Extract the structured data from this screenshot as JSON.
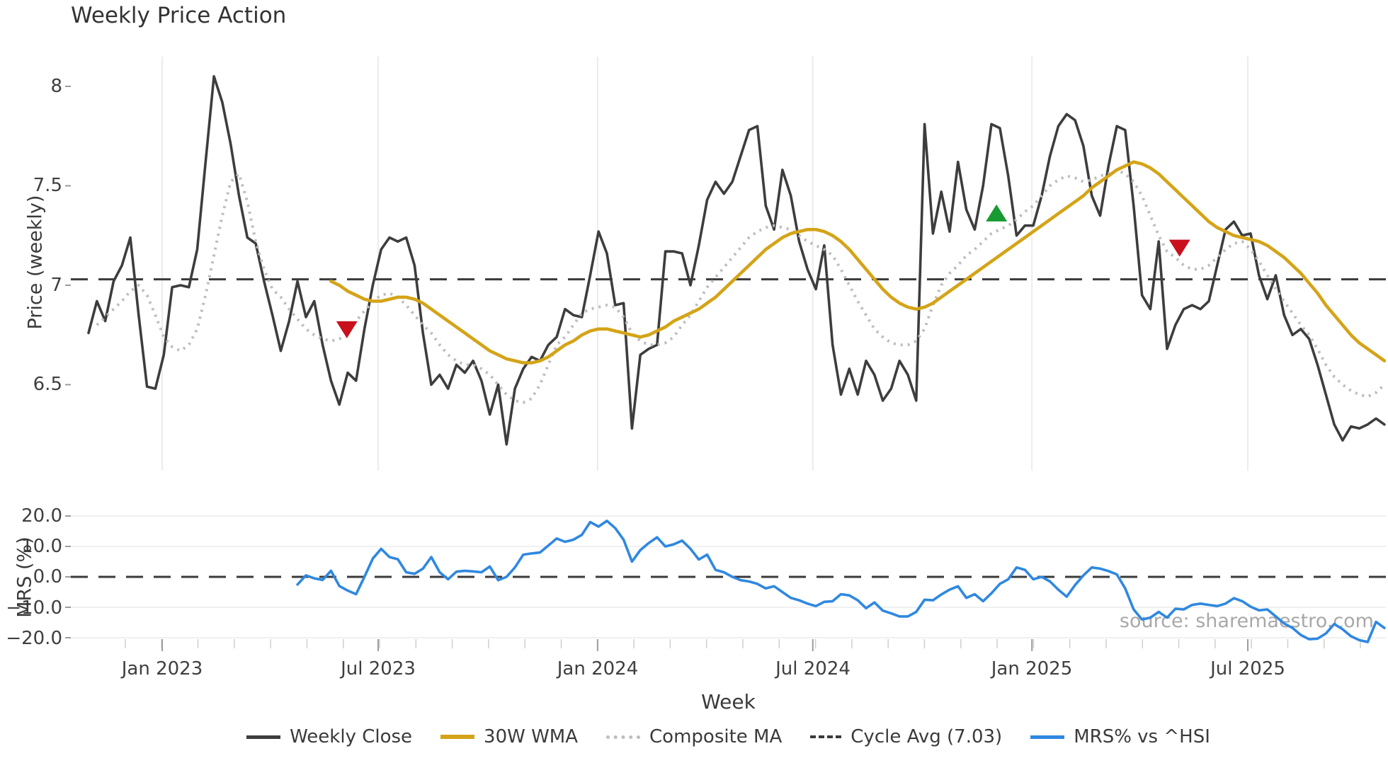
{
  "title": "Weekly Price Action",
  "source_note": "source: sharemaestro.com",
  "chart_data": {
    "type": "line",
    "title": "Weekly Price Action",
    "xlabel": "Week",
    "x_unit": "week_index_from_Nov_2022",
    "x_ticks": [
      {
        "week": 8.81,
        "label": "Jan 2023"
      },
      {
        "week": 34.64,
        "label": "Jul 2023"
      },
      {
        "week": 60.89,
        "label": "Jan 2024"
      },
      {
        "week": 86.63,
        "label": "Jul 2024"
      },
      {
        "week": 112.84,
        "label": "Jan 2025"
      },
      {
        "week": 138.66,
        "label": "Jul 2025"
      }
    ],
    "panels": [
      {
        "name": "price",
        "ylabel": "Price (weekly)",
        "ylim": [
          6.05,
          8.15
        ],
        "grid": "vertical",
        "yticks": [
          {
            "value": 8,
            "label": "8"
          },
          {
            "value": 7.5,
            "label": "7.5"
          },
          {
            "value": 7,
            "label": "7"
          },
          {
            "value": 6.5,
            "label": "6.5"
          }
        ]
      },
      {
        "name": "mrs",
        "ylabel": "MRS (%)",
        "ylim": [
          -23,
          23
        ],
        "grid": "horizontal",
        "grid_values": [
          20,
          10,
          -10,
          -20
        ],
        "yticks": [
          {
            "value": 20,
            "label": "20.0"
          },
          {
            "value": 10,
            "label": "10.0"
          },
          {
            "value": 0,
            "label": "0.0"
          },
          {
            "value": -10,
            "label": "−10.0"
          },
          {
            "value": -20,
            "label": "−20.0"
          }
        ]
      }
    ],
    "cycle_avg": 7.03,
    "series": [
      {
        "name": "Weekly Close",
        "panel": "price",
        "color": "#3d3d3d",
        "style": "solid",
        "width": 3.6,
        "start_week": 0,
        "values": [
          6.76,
          6.92,
          6.82,
          7.02,
          7.1,
          7.24,
          6.85,
          6.49,
          6.48,
          6.65,
          6.99,
          7.0,
          6.99,
          7.18,
          7.62,
          8.05,
          7.92,
          7.71,
          7.45,
          7.24,
          7.21,
          7.02,
          6.85,
          6.67,
          6.82,
          7.02,
          6.84,
          6.92,
          6.7,
          6.52,
          6.4,
          6.56,
          6.52,
          6.78,
          7.0,
          7.18,
          7.24,
          7.22,
          7.24,
          7.1,
          6.76,
          6.5,
          6.55,
          6.48,
          6.6,
          6.56,
          6.62,
          6.52,
          6.35,
          6.5,
          6.2,
          6.48,
          6.58,
          6.64,
          6.62,
          6.7,
          6.74,
          6.88,
          6.85,
          6.84,
          7.05,
          7.27,
          7.16,
          6.9,
          6.91,
          6.28,
          6.65,
          6.68,
          6.7,
          7.17,
          7.17,
          7.16,
          7.0,
          7.2,
          7.43,
          7.52,
          7.46,
          7.52,
          7.65,
          7.78,
          7.8,
          7.4,
          7.28,
          7.58,
          7.45,
          7.22,
          7.08,
          6.98,
          7.2,
          6.7,
          6.45,
          6.58,
          6.45,
          6.62,
          6.55,
          6.42,
          6.48,
          6.62,
          6.55,
          6.42,
          7.81,
          7.26,
          7.47,
          7.27,
          7.62,
          7.38,
          7.28,
          7.5,
          7.81,
          7.79,
          7.55,
          7.25,
          7.3,
          7.3,
          7.45,
          7.65,
          7.8,
          7.86,
          7.83,
          7.7,
          7.45,
          7.35,
          7.6,
          7.8,
          7.78,
          7.4,
          6.95,
          6.88,
          7.22,
          6.68,
          6.8,
          6.88,
          6.9,
          6.88,
          6.92,
          7.1,
          7.28,
          7.32,
          7.25,
          7.26,
          7.05,
          6.93,
          7.05,
          6.85,
          6.75,
          6.78,
          6.73,
          6.6,
          6.45,
          6.3,
          6.22,
          6.29,
          6.28,
          6.3,
          6.33,
          6.3
        ]
      },
      {
        "name": "30W WMA",
        "panel": "price",
        "color": "#d4a418",
        "style": "solid",
        "width": 4.6,
        "start_week": 29,
        "values": [
          7.02,
          7.0,
          6.97,
          6.95,
          6.93,
          6.92,
          6.92,
          6.93,
          6.94,
          6.94,
          6.93,
          6.91,
          6.88,
          6.85,
          6.82,
          6.79,
          6.76,
          6.73,
          6.7,
          6.67,
          6.65,
          6.63,
          6.62,
          6.61,
          6.61,
          6.62,
          6.64,
          6.67,
          6.7,
          6.72,
          6.75,
          6.77,
          6.78,
          6.78,
          6.77,
          6.76,
          6.75,
          6.74,
          6.75,
          6.77,
          6.79,
          6.82,
          6.84,
          6.86,
          6.88,
          6.91,
          6.94,
          6.98,
          7.02,
          7.06,
          7.1,
          7.14,
          7.18,
          7.21,
          7.24,
          7.26,
          7.27,
          7.28,
          7.28,
          7.27,
          7.25,
          7.22,
          7.18,
          7.13,
          7.08,
          7.03,
          6.98,
          6.94,
          6.91,
          6.89,
          6.88,
          6.89,
          6.91,
          6.94,
          6.97,
          7.0,
          7.03,
          7.06,
          7.09,
          7.12,
          7.15,
          7.18,
          7.21,
          7.24,
          7.27,
          7.3,
          7.33,
          7.36,
          7.39,
          7.42,
          7.45,
          7.49,
          7.52,
          7.55,
          7.58,
          7.6,
          7.62,
          7.61,
          7.59,
          7.56,
          7.52,
          7.48,
          7.44,
          7.4,
          7.36,
          7.32,
          7.29,
          7.27,
          7.25,
          7.24,
          7.23,
          7.22,
          7.2,
          7.17,
          7.14,
          7.1,
          7.06,
          7.01,
          6.96,
          6.9,
          6.85,
          6.8,
          6.75,
          6.71,
          6.68,
          6.65,
          6.62
        ]
      },
      {
        "name": "Composite MA",
        "panel": "price",
        "color": "#bdbdbd",
        "style": "dotted",
        "width": 4,
        "start_week": 1,
        "values": [
          6.8,
          6.84,
          6.88,
          6.92,
          6.97,
          7.0,
          6.95,
          6.85,
          6.74,
          6.69,
          6.67,
          6.7,
          6.78,
          6.95,
          7.15,
          7.35,
          7.52,
          7.56,
          7.42,
          7.22,
          7.08,
          6.98,
          6.94,
          6.88,
          6.83,
          6.78,
          6.75,
          6.73,
          6.72,
          6.73,
          6.76,
          6.82,
          6.87,
          6.92,
          6.95,
          6.96,
          6.94,
          6.9,
          6.85,
          6.8,
          6.76,
          6.7,
          6.65,
          6.62,
          6.6,
          6.6,
          6.58,
          6.55,
          6.5,
          6.45,
          6.42,
          6.41,
          6.43,
          6.5,
          6.6,
          6.7,
          6.74,
          6.8,
          6.86,
          6.88,
          6.89,
          6.9,
          6.89,
          6.84,
          6.76,
          6.72,
          6.7,
          6.7,
          6.71,
          6.74,
          6.8,
          6.85,
          6.92,
          6.99,
          7.04,
          7.09,
          7.14,
          7.19,
          7.24,
          7.27,
          7.29,
          7.3,
          7.29,
          7.28,
          7.25,
          7.22,
          7.2,
          7.18,
          7.15,
          7.08,
          7.0,
          6.92,
          6.85,
          6.78,
          6.74,
          6.71,
          6.7,
          6.7,
          6.72,
          6.78,
          6.9,
          7.0,
          7.06,
          7.1,
          7.15,
          7.18,
          7.22,
          7.26,
          7.28,
          7.3,
          7.33,
          7.37,
          7.4,
          7.45,
          7.5,
          7.53,
          7.55,
          7.54,
          7.52,
          7.53,
          7.55,
          7.56,
          7.58,
          7.56,
          7.52,
          7.45,
          7.35,
          7.25,
          7.17,
          7.14,
          7.1,
          7.08,
          7.08,
          7.1,
          7.14,
          7.18,
          7.21,
          7.22,
          7.18,
          7.12,
          7.05,
          6.98,
          6.92,
          6.86,
          6.8,
          6.75,
          6.68,
          6.6,
          6.54,
          6.5,
          6.47,
          6.45,
          6.44,
          6.46,
          6.5
        ]
      },
      {
        "name": "Cycle Avg (7.03)",
        "panel": "price",
        "color": "#3a3a3a",
        "style": "dashed",
        "width": 3,
        "type": "hline",
        "value": 7.03
      },
      {
        "name": "MRS% vs ^HSI",
        "panel": "mrs",
        "color": "#2f88e0",
        "style": "solid",
        "width": 3.6,
        "start_week": 25,
        "values": [
          -2.5,
          0.5,
          -0.5,
          -1.0,
          2.0,
          -3.0,
          -4.5,
          -5.7,
          0.0,
          6.0,
          9.2,
          6.5,
          5.8,
          1.5,
          1.0,
          2.7,
          6.5,
          1.5,
          -0.8,
          1.7,
          2.0,
          1.8,
          1.5,
          3.4,
          -1.1,
          0.0,
          3.1,
          7.3,
          7.7,
          8.0,
          10.3,
          12.6,
          11.5,
          12.2,
          13.8,
          18.0,
          16.5,
          18.4,
          16.0,
          12.2,
          5.0,
          8.8,
          11.1,
          13.0,
          10.0,
          10.7,
          11.9,
          9.2,
          5.7,
          7.3,
          2.3,
          1.5,
          0.0,
          -1.1,
          -1.5,
          -2.3,
          -3.8,
          -3.1,
          -5.0,
          -6.9,
          -7.7,
          -8.8,
          -9.6,
          -8.2,
          -8.0,
          -5.7,
          -6.1,
          -7.7,
          -10.3,
          -8.4,
          -11.1,
          -12.0,
          -13.0,
          -13.0,
          -11.5,
          -7.5,
          -7.7,
          -5.8,
          -4.2,
          -3.1,
          -6.9,
          -5.7,
          -8.0,
          -5.4,
          -2.3,
          -0.8,
          3.1,
          2.3,
          -0.8,
          0.0,
          -1.5,
          -4.2,
          -6.5,
          -2.7,
          0.5,
          3.1,
          2.7,
          1.9,
          0.8,
          -3.8,
          -10.7,
          -14.0,
          -13.4,
          -11.5,
          -13.4,
          -10.5,
          -10.7,
          -9.2,
          -8.8,
          -9.2,
          -9.6,
          -8.8,
          -7.0,
          -8.0,
          -9.8,
          -11.0,
          -10.7,
          -13.0,
          -15.3,
          -16.8,
          -19.1,
          -20.5,
          -20.3,
          -18.6,
          -15.5,
          -17.2,
          -19.5,
          -20.8,
          -21.4,
          -14.8,
          -16.8
        ]
      }
    ],
    "mrs_zero_line": {
      "value": 0,
      "style": "dashed",
      "color": "#3a3a3a",
      "width": 3
    },
    "markers": [
      {
        "week": 30.9,
        "price": 6.78,
        "shape": "triangle-down",
        "color": "#c9101d",
        "meaning": "sell-signal"
      },
      {
        "week": 108.6,
        "price": 7.36,
        "shape": "triangle-up",
        "color": "#189a32",
        "meaning": "buy-signal"
      },
      {
        "week": 130.5,
        "price": 7.19,
        "shape": "triangle-down",
        "color": "#c9101d",
        "meaning": "sell-signal"
      }
    ]
  },
  "legend": {
    "items": [
      {
        "label": "Weekly Close"
      },
      {
        "label": "30W WMA"
      },
      {
        "label": "Composite MA"
      },
      {
        "label": "Cycle Avg (7.03)"
      },
      {
        "label": "MRS% vs ^HSI"
      }
    ]
  }
}
